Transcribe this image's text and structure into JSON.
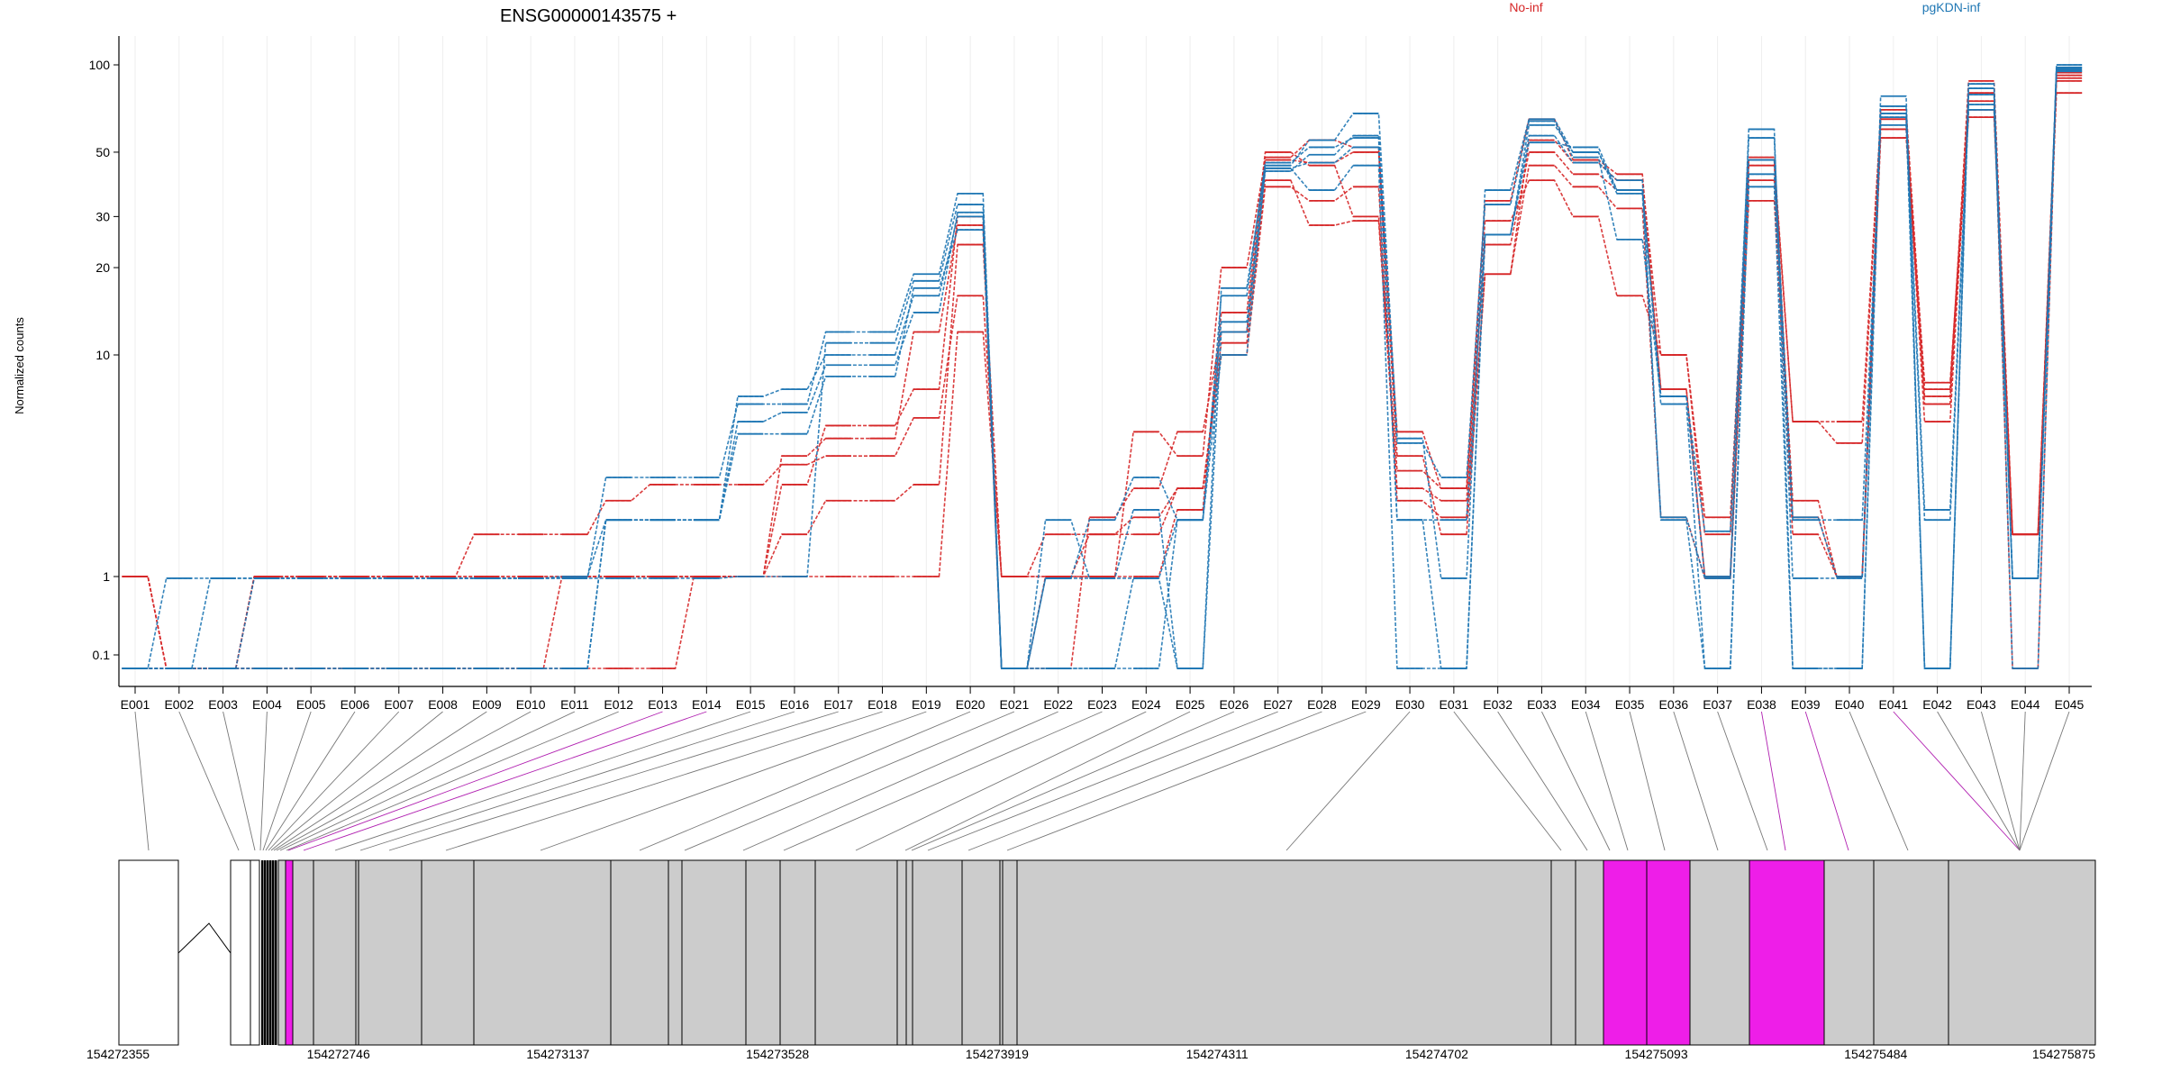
{
  "chart_data": {
    "type": "line",
    "title": "ENSG00000143575 +",
    "ylabel": "Normalized counts",
    "xlabel": "",
    "y_scale": "log",
    "ylim": [
      0.05,
      130
    ],
    "y_ticks": [
      0.1,
      1,
      10,
      20,
      30,
      50,
      100
    ],
    "y_tick_labels": [
      "0.1",
      "1",
      "10",
      "20",
      "30",
      "50",
      "100"
    ],
    "grid": true,
    "legend_placement": "top",
    "categories": [
      "E001",
      "E002",
      "E003",
      "E004",
      "E005",
      "E006",
      "E007",
      "E008",
      "E009",
      "E010",
      "E011",
      "E012",
      "E013",
      "E014",
      "E015",
      "E016",
      "E017",
      "E018",
      "E019",
      "E020",
      "E021",
      "E022",
      "E023",
      "E024",
      "E025",
      "E026",
      "E027",
      "E028",
      "E029",
      "E030",
      "E031",
      "E032",
      "E033",
      "E034",
      "E035",
      "E036",
      "E037",
      "E038",
      "E039",
      "E040",
      "E041",
      "E042",
      "E043",
      "E044",
      "E045"
    ],
    "series": [
      {
        "group": "No-inf",
        "color": "#d62728",
        "values": [
          1.0,
          0.07,
          0.07,
          1.0,
          1.0,
          1.0,
          1.0,
          1.0,
          1.55,
          1.55,
          1.55,
          2.2,
          2.6,
          2.6,
          2.6,
          3.2,
          3.5,
          3.5,
          5.2,
          16,
          1.0,
          1.55,
          1.55,
          1.55,
          2.5,
          10,
          38,
          34,
          38,
          2.2,
          1.85,
          19,
          45,
          38,
          32,
          1.85,
          0.95,
          34,
          1.55,
          1.0,
          56,
          6.5,
          66,
          1.55,
          80
        ]
      },
      {
        "group": "No-inf",
        "color": "#d62728",
        "values": [
          1.0,
          0.07,
          0.07,
          1.0,
          1.0,
          1.0,
          1.0,
          1.0,
          1.0,
          1.0,
          1.0,
          1.0,
          1.0,
          1.0,
          1.0,
          1.55,
          2.2,
          2.2,
          2.6,
          24,
          1.0,
          1.0,
          1.55,
          1.85,
          2.5,
          11,
          40,
          28,
          29,
          2.5,
          2.2,
          24,
          50,
          42,
          37,
          7.0,
          1.0,
          40,
          2.2,
          1.0,
          60,
          7.5,
          70,
          1.55,
          88
        ]
      },
      {
        "group": "No-inf",
        "color": "#d62728",
        "values": [
          1.0,
          0.07,
          0.07,
          1.0,
          1.0,
          1.0,
          1.0,
          1.0,
          1.0,
          1.0,
          1.0,
          1.0,
          1.0,
          1.0,
          1.0,
          1.0,
          1.0,
          1.0,
          1.0,
          12,
          1.0,
          1.0,
          1.0,
          1.0,
          2.0,
          14,
          50,
          45,
          30,
          3.0,
          2.5,
          29,
          40,
          30,
          16,
          10,
          1.55,
          47,
          5.0,
          4.0,
          65,
          5.0,
          75,
          1.55,
          90
        ]
      },
      {
        "group": "No-inf",
        "color": "#d62728",
        "values": [
          0.07,
          0.07,
          0.07,
          0.07,
          0.07,
          0.07,
          0.07,
          0.07,
          0.07,
          0.07,
          1.0,
          1.0,
          1.0,
          1.0,
          1.0,
          3.5,
          4.2,
          4.2,
          12,
          28,
          0.07,
          1.0,
          1.0,
          4.5,
          3.5,
          20,
          47,
          46,
          50,
          3.5,
          1.55,
          19,
          55,
          46,
          40,
          10,
          1.85,
          45,
          5.0,
          5.0,
          65,
          6.0,
          88,
          1.55,
          92
        ]
      },
      {
        "group": "No-inf",
        "color": "#d62728",
        "values": [
          0.07,
          0.07,
          0.07,
          0.07,
          0.07,
          0.07,
          0.07,
          0.07,
          0.07,
          0.07,
          0.07,
          0.07,
          0.07,
          1.0,
          1.0,
          2.6,
          4.8,
          4.8,
          7.0,
          30,
          0.07,
          0.07,
          1.85,
          2.5,
          4.5,
          12,
          48,
          55,
          52,
          4.5,
          2.5,
          34,
          65,
          47,
          42,
          7.0,
          1.0,
          48,
          1.85,
          1.0,
          70,
          7.0,
          80,
          0.07,
          94
        ]
      },
      {
        "group": "pgKDN-inf",
        "color": "#1f77b4",
        "values": [
          0.07,
          0.95,
          0.95,
          0.95,
          0.95,
          0.95,
          0.95,
          0.95,
          0.95,
          0.95,
          0.95,
          0.95,
          0.95,
          0.95,
          1.0,
          1.0,
          11,
          11,
          18,
          33,
          0.07,
          1.8,
          0.95,
          0.95,
          1.8,
          13,
          44,
          46,
          52,
          1.8,
          1.8,
          26,
          57,
          46,
          40,
          1.8,
          0.07,
          42,
          1.8,
          1.8,
          62,
          1.8,
          70,
          0.95,
          96
        ]
      },
      {
        "group": "pgKDN-inf",
        "color": "#1f77b4",
        "values": [
          0.07,
          0.07,
          0.95,
          0.95,
          0.95,
          0.95,
          0.95,
          0.95,
          0.95,
          0.95,
          1.0,
          1.8,
          1.8,
          1.8,
          6.5,
          7.0,
          10,
          10,
          16,
          30,
          0.07,
          0.95,
          1.8,
          2.8,
          1.8,
          16,
          46,
          52,
          56,
          1.8,
          0.07,
          26,
          62,
          50,
          37,
          6.5,
          1.6,
          56,
          0.95,
          0.95,
          72,
          0.07,
          83,
          0.95,
          98
        ]
      },
      {
        "group": "pgKDN-inf",
        "color": "#1f77b4",
        "values": [
          0.07,
          0.07,
          0.07,
          0.95,
          0.95,
          0.95,
          0.95,
          0.95,
          0.95,
          0.95,
          0.95,
          2.8,
          2.8,
          2.8,
          6.0,
          6.0,
          12,
          12,
          19,
          36,
          0.07,
          0.95,
          0.95,
          2.0,
          0.07,
          17,
          45,
          55,
          68,
          4.2,
          0.95,
          37,
          65,
          50,
          36,
          1.85,
          0.95,
          60,
          0.07,
          0.07,
          78,
          0.07,
          86,
          0.07,
          100
        ]
      },
      {
        "group": "pgKDN-inf",
        "color": "#1f77b4",
        "values": [
          0.07,
          0.07,
          0.07,
          0.07,
          0.07,
          0.07,
          0.07,
          0.07,
          0.07,
          0.07,
          0.07,
          1.8,
          1.8,
          1.8,
          5.0,
          5.5,
          9.0,
          9.0,
          14,
          31,
          0.07,
          0.07,
          0.07,
          0.95,
          0.07,
          12,
          43,
          49,
          57,
          4.0,
          2.8,
          33,
          64,
          48,
          25,
          6.5,
          1.0,
          47,
          1.85,
          1.0,
          68,
          2.0,
          73,
          0.95,
          97
        ]
      },
      {
        "group": "pgKDN-inf",
        "color": "#1f77b4",
        "values": [
          0.07,
          0.07,
          0.07,
          0.07,
          0.07,
          0.07,
          0.07,
          0.07,
          0.07,
          0.07,
          0.07,
          1.8,
          1.8,
          1.8,
          4.4,
          4.4,
          8.0,
          8.0,
          17,
          27,
          0.07,
          0.07,
          0.07,
          0.07,
          1.8,
          10,
          44,
          37,
          45,
          0.07,
          0.07,
          26,
          54,
          52,
          37,
          6.0,
          0.07,
          38,
          0.07,
          0.07,
          66,
          0.07,
          79,
          0.95,
          95
        ]
      }
    ],
    "legend": [
      {
        "label": "No-inf",
        "color": "#d62728"
      },
      {
        "label": "pgKDN-inf",
        "color": "#1f77b4"
      }
    ],
    "genome_ticks": [
      "154272355",
      "154272746",
      "154273137",
      "154273528",
      "154273919",
      "154274311",
      "154274702",
      "154275093",
      "154275484",
      "154275875"
    ],
    "genome_start": 154272355,
    "genome_end": 154275875,
    "exon_highlight_color": "#ee1ee8",
    "exon_color": "#cccccc"
  }
}
